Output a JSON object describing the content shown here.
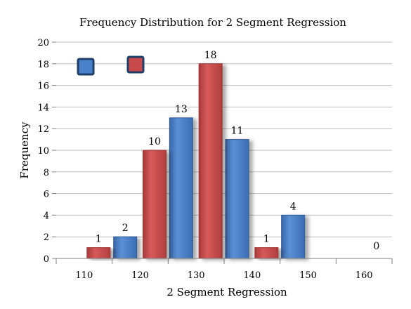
{
  "chart_data": {
    "type": "bar",
    "title": "Frequency Distribution for 2 Segment Regression",
    "xlabel": "2 Segment Regression",
    "ylabel": "Frequency",
    "categories": [
      "110",
      "120",
      "130",
      "140",
      "150",
      "160"
    ],
    "y_ticks": [
      "0",
      "2",
      "4",
      "6",
      "8",
      "10",
      "12",
      "14",
      "16",
      "18",
      "20"
    ],
    "ylim": [
      0,
      20
    ],
    "grid": true,
    "legend": "top-left, color swatches only",
    "series": [
      {
        "color": "#4a7fc9",
        "values": [
          null,
          2,
          13,
          11,
          4,
          0
        ]
      },
      {
        "color": "#c84a4a",
        "values": [
          1,
          10,
          18,
          1,
          0,
          null
        ]
      }
    ],
    "data_labels": {
      "series0": [
        "",
        "2",
        "13",
        "11",
        "4",
        "0"
      ],
      "series1": [
        "1",
        "10",
        "18",
        "1",
        "",
        ""
      ]
    }
  }
}
